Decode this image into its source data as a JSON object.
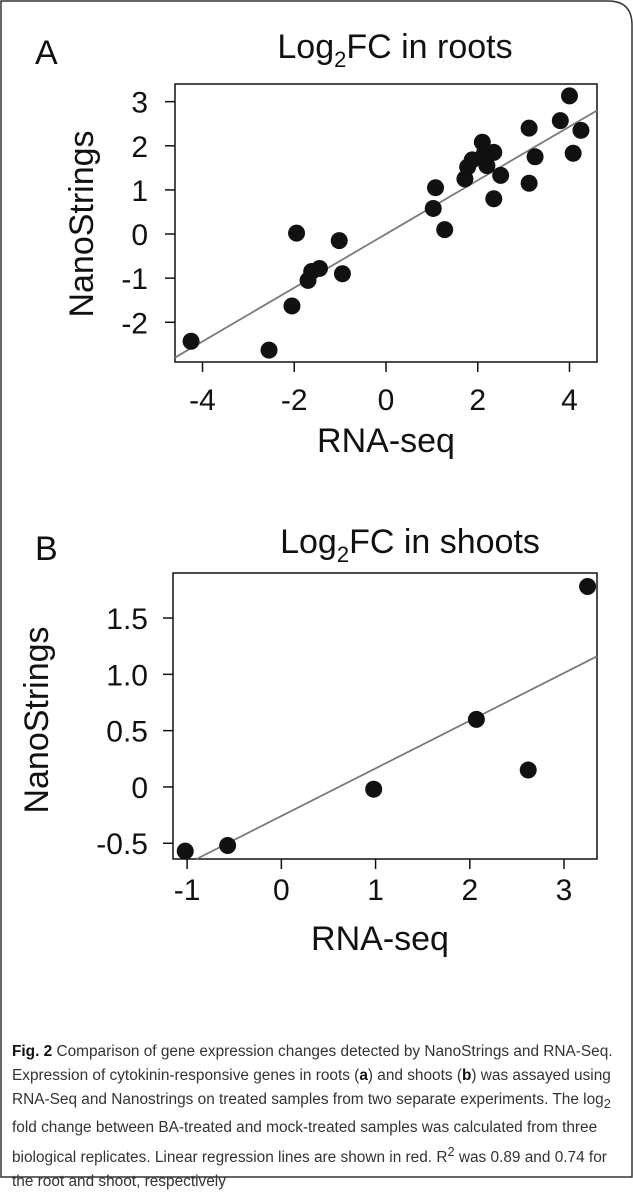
{
  "chart_data": [
    {
      "type": "scatter",
      "panel_letter": "A",
      "title": {
        "prefix": "Log",
        "subscript": "2",
        "suffix": "FC in roots"
      },
      "xlabel": "RNA-seq",
      "ylabel": "NanoStrings",
      "xlim": [
        -4.6,
        4.6
      ],
      "ylim": [
        -2.9,
        3.4
      ],
      "x_ticks": [
        -4,
        -2,
        0,
        2,
        4
      ],
      "x_tick_labels": [
        "-4",
        "-2",
        "0",
        "2",
        "4"
      ],
      "y_ticks": [
        -2,
        -1,
        0,
        1,
        2,
        3
      ],
      "y_tick_labels": [
        "-2",
        "-1",
        "0",
        "1",
        "2",
        "3"
      ],
      "grid": false,
      "points": [
        {
          "x": -4.25,
          "y": -2.43
        },
        {
          "x": -2.55,
          "y": -2.63
        },
        {
          "x": -2.05,
          "y": -1.63
        },
        {
          "x": -1.95,
          "y": 0.02
        },
        {
          "x": -1.7,
          "y": -1.05
        },
        {
          "x": -1.62,
          "y": -0.85
        },
        {
          "x": -1.45,
          "y": -0.78
        },
        {
          "x": -1.02,
          "y": -0.15
        },
        {
          "x": -0.95,
          "y": -0.9
        },
        {
          "x": 1.03,
          "y": 0.58
        },
        {
          "x": 1.08,
          "y": 1.05
        },
        {
          "x": 1.28,
          "y": 0.1
        },
        {
          "x": 1.72,
          "y": 1.25
        },
        {
          "x": 1.78,
          "y": 1.52
        },
        {
          "x": 1.88,
          "y": 1.68
        },
        {
          "x": 2.1,
          "y": 2.08
        },
        {
          "x": 2.15,
          "y": 1.85
        },
        {
          "x": 2.2,
          "y": 1.55
        },
        {
          "x": 2.35,
          "y": 1.85
        },
        {
          "x": 2.35,
          "y": 0.8
        },
        {
          "x": 2.5,
          "y": 1.33
        },
        {
          "x": 3.12,
          "y": 2.4
        },
        {
          "x": 3.12,
          "y": 1.15
        },
        {
          "x": 3.25,
          "y": 1.75
        },
        {
          "x": 3.8,
          "y": 2.57
        },
        {
          "x": 4.0,
          "y": 3.13
        },
        {
          "x": 4.08,
          "y": 1.83
        },
        {
          "x": 4.25,
          "y": 2.35
        }
      ],
      "regression": {
        "x": [
          -4.6,
          4.6
        ],
        "y": [
          -2.8,
          2.8
        ]
      }
    },
    {
      "type": "scatter",
      "panel_letter": "B",
      "title": {
        "prefix": "Log",
        "subscript": "2",
        "suffix": "FC in shoots"
      },
      "xlabel": "RNA-seq",
      "ylabel": "NanoStrings",
      "xlim": [
        -1.15,
        3.35
      ],
      "ylim": [
        -0.64,
        1.9
      ],
      "x_ticks": [
        -1,
        0,
        1,
        2,
        3
      ],
      "x_tick_labels": [
        "-1",
        "0",
        "1",
        "2",
        "3"
      ],
      "y_ticks": [
        -0.5,
        0,
        0.5,
        1.0,
        1.5
      ],
      "y_tick_labels": [
        "-0.5",
        "0",
        "0.5",
        "1.0",
        "1.5"
      ],
      "grid": false,
      "points": [
        {
          "x": -1.02,
          "y": -0.57
        },
        {
          "x": -0.57,
          "y": -0.52
        },
        {
          "x": 0.98,
          "y": -0.02
        },
        {
          "x": 2.07,
          "y": 0.6
        },
        {
          "x": 2.62,
          "y": 0.15
        },
        {
          "x": 3.25,
          "y": 1.78
        }
      ],
      "regression": {
        "x": [
          -0.9,
          3.35
        ],
        "y": [
          -0.64,
          1.16
        ]
      }
    }
  ],
  "caption": {
    "label": "Fig. 2",
    "part1": " Comparison of gene expression changes detected by NanoStrings and RNA-Seq. Expression of cytokinin-responsive genes in roots (",
    "letter_a": "a",
    "part2": ") and shoots (",
    "letter_b": "b",
    "part3": ") was assayed using RNA-Seq and Nanostrings on treated samples from two separate experiments. The log",
    "sub2": "2",
    "part4": " fold change between BA-treated and mock-treated samples was calculated from three biological replicates. Linear regression lines are shown in red. R",
    "sup2": "2",
    "part5": " was 0.89 and 0.74 for the root and shoot, respectively"
  },
  "colors": {
    "points": "#111111",
    "regression": "#7a7a7a",
    "axis": "#111111",
    "frame": "#333333",
    "caption_text": "#333333"
  }
}
